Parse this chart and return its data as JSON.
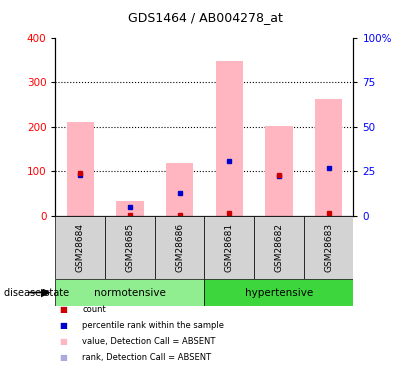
{
  "title": "GDS1464 / AB004278_at",
  "samples": [
    "GSM28684",
    "GSM28685",
    "GSM28686",
    "GSM28681",
    "GSM28682",
    "GSM28683"
  ],
  "group_info": [
    {
      "label": "normotensive",
      "start": 0,
      "end": 2,
      "color": "#90EE90"
    },
    {
      "label": "hypertensive",
      "start": 3,
      "end": 5,
      "color": "#3DD63D"
    }
  ],
  "pink_bar_values": [
    210,
    33,
    118,
    347,
    202,
    263
  ],
  "red_dot_values": [
    95,
    2,
    2,
    5,
    92,
    5
  ],
  "blue_dot_values": [
    92,
    20,
    50,
    122,
    90,
    107
  ],
  "ylim_left": [
    0,
    400
  ],
  "ylim_right": [
    0,
    100
  ],
  "yticks_left": [
    0,
    100,
    200,
    300,
    400
  ],
  "yticks_right": [
    0,
    25,
    50,
    75,
    100
  ],
  "yticklabels_right": [
    "0",
    "25",
    "50",
    "75",
    "100%"
  ],
  "grid_values": [
    100,
    200,
    300
  ],
  "bar_color_pink": "#FFB6C1",
  "dot_color_red": "#CC0000",
  "dot_color_blue": "#0000CC",
  "dot_color_lilac": "#AAAADD",
  "sample_bg_color": "#D3D3D3",
  "bar_width": 0.55,
  "legend_items": [
    {
      "label": "count",
      "color": "#CC0000",
      "lcolor": "#CC0000"
    },
    {
      "label": "percentile rank within the sample",
      "color": "#0000CC",
      "lcolor": "#0000CC"
    },
    {
      "label": "value, Detection Call = ABSENT",
      "color": "#FFB6C1",
      "lcolor": "#FFB6C1"
    },
    {
      "label": "rank, Detection Call = ABSENT",
      "color": "#AAAADD",
      "lcolor": "#AAAADD"
    }
  ]
}
